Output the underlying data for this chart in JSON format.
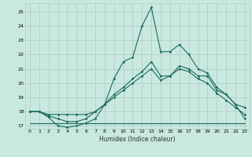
{
  "xlabel": "Humidex (Indice chaleur)",
  "bg_color": "#c8e8e0",
  "grid_color": "#b0d0c8",
  "line_color": "#1a6b5a",
  "xlim": [
    -0.5,
    23.5
  ],
  "ylim": [
    16.8,
    25.6
  ],
  "xticks": [
    0,
    1,
    2,
    3,
    4,
    5,
    6,
    7,
    8,
    9,
    10,
    11,
    12,
    13,
    14,
    15,
    16,
    17,
    18,
    19,
    20,
    21,
    22,
    23
  ],
  "yticks": [
    17,
    18,
    19,
    20,
    21,
    22,
    23,
    24,
    25
  ],
  "series": {
    "line1": [
      18.0,
      18.0,
      17.6,
      17.0,
      16.9,
      17.0,
      17.2,
      17.5,
      18.5,
      20.3,
      21.5,
      21.8,
      24.0,
      25.3,
      22.2,
      22.2,
      22.7,
      22.0,
      21.0,
      20.7,
      19.7,
      19.2,
      18.5,
      18.3
    ],
    "line2": [
      18.0,
      18.0,
      17.7,
      17.5,
      17.3,
      17.3,
      17.5,
      18.0,
      18.5,
      19.2,
      19.7,
      20.3,
      20.8,
      21.5,
      20.5,
      20.5,
      21.2,
      21.0,
      20.5,
      20.5,
      19.5,
      19.2,
      18.5,
      17.5
    ],
    "line3": [
      18.0,
      18.0,
      17.8,
      17.8,
      17.8,
      17.8,
      17.8,
      18.0,
      18.5,
      19.0,
      19.5,
      20.0,
      20.5,
      21.0,
      20.2,
      20.5,
      21.0,
      20.8,
      20.3,
      20.0,
      19.3,
      18.8,
      18.3,
      17.8
    ],
    "line4_x": [
      0,
      23
    ],
    "line4_y": [
      17.2,
      17.2
    ]
  }
}
